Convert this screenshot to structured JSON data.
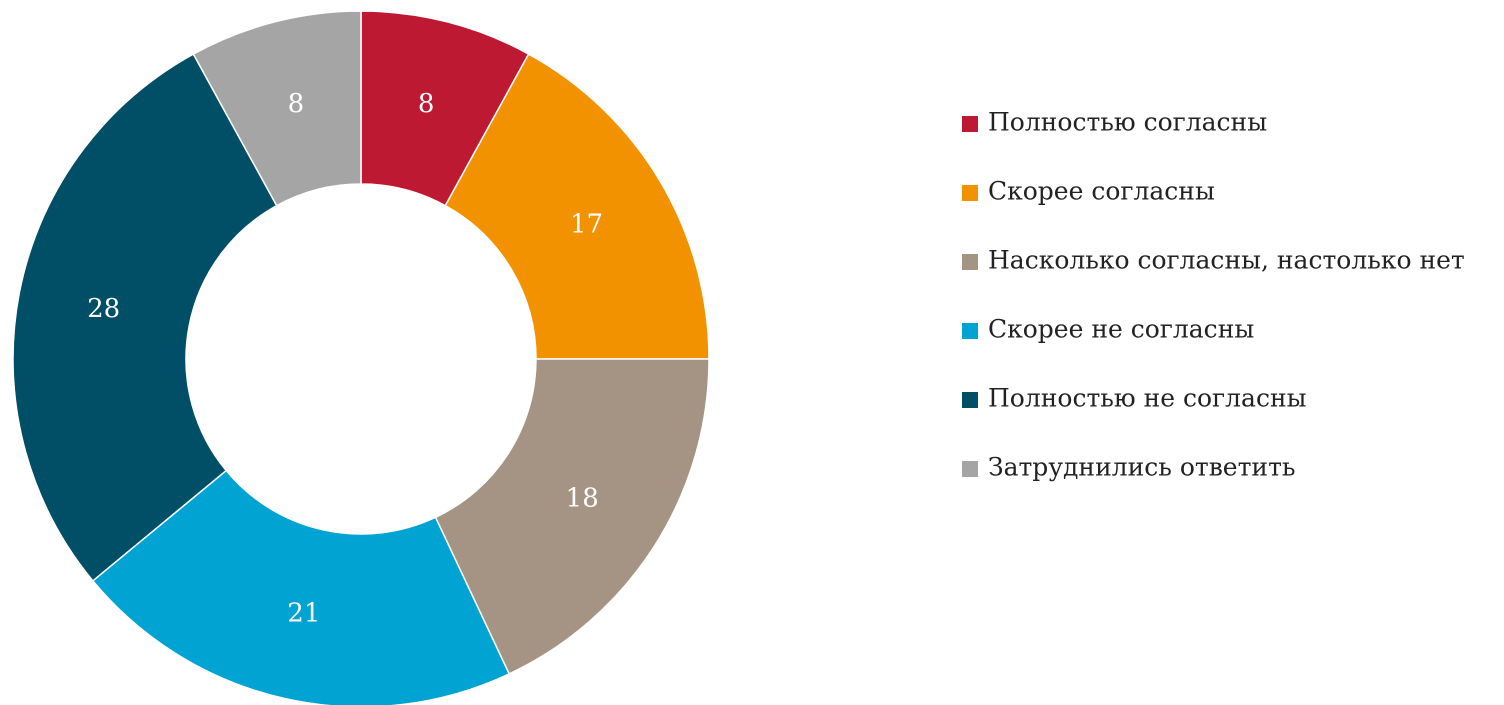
{
  "chart_data": {
    "type": "donut",
    "categories": [
      "Полностью согласны",
      "Скорее согласны",
      "Насколько согласны, настолько нет",
      "Скорее не согласны",
      "Полностью не согласны",
      "Затруднились ответить"
    ],
    "values": [
      8,
      17,
      18,
      21,
      28,
      8
    ],
    "colors": [
      "#be1932",
      "#f39200",
      "#a59484",
      "#00a3d1",
      "#004f67",
      "#a5a5a5"
    ],
    "legend": "right"
  }
}
